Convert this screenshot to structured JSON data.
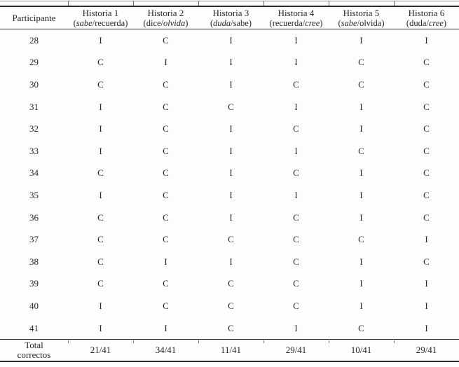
{
  "page": {
    "background_color": "#fdfdfd",
    "text_color": "#262626",
    "rule_color": "#2b2b2b"
  },
  "table": {
    "participant_header": "Participante",
    "subtitle_open": "(",
    "subtitle_close": ")",
    "subtitle_separator": "/",
    "columns": [
      {
        "title": "Historia 1",
        "word1": "sabe",
        "word2": "recuerda",
        "italic_word": "word1"
      },
      {
        "title": "Historia 2",
        "word1": "dice",
        "word2": "olvida",
        "italic_word": "word2"
      },
      {
        "title": "Historia 3",
        "word1": "duda",
        "word2": "sabe",
        "italic_word": "word1"
      },
      {
        "title": "Historia 4",
        "word1": "recuerda",
        "word2": "cree",
        "italic_word": "word2"
      },
      {
        "title": "Historia 5",
        "word1": "sabe",
        "word2": "olvida",
        "italic_word": "word1"
      },
      {
        "title": "Historia 6",
        "word1": "duda",
        "word2": "cree",
        "italic_word": "word2"
      }
    ],
    "rows": [
      {
        "participant": "28",
        "values": [
          "I",
          "C",
          "I",
          "I",
          "I",
          "I"
        ]
      },
      {
        "participant": "29",
        "values": [
          "C",
          "I",
          "I",
          "I",
          "C",
          "C"
        ]
      },
      {
        "participant": "30",
        "values": [
          "C",
          "C",
          "I",
          "C",
          "C",
          "C"
        ]
      },
      {
        "participant": "31",
        "values": [
          "I",
          "C",
          "C",
          "I",
          "I",
          "C"
        ]
      },
      {
        "participant": "32",
        "values": [
          "I",
          "C",
          "I",
          "C",
          "I",
          "C"
        ]
      },
      {
        "participant": "33",
        "values": [
          "I",
          "C",
          "I",
          "I",
          "C",
          "C"
        ]
      },
      {
        "participant": "34",
        "values": [
          "C",
          "C",
          "I",
          "C",
          "I",
          "C"
        ]
      },
      {
        "participant": "35",
        "values": [
          "I",
          "C",
          "I",
          "I",
          "I",
          "C"
        ]
      },
      {
        "participant": "36",
        "values": [
          "C",
          "C",
          "I",
          "C",
          "I",
          "C"
        ]
      },
      {
        "participant": "37",
        "values": [
          "C",
          "C",
          "C",
          "C",
          "C",
          "I"
        ]
      },
      {
        "participant": "38",
        "values": [
          "C",
          "I",
          "I",
          "C",
          "I",
          "C"
        ]
      },
      {
        "participant": "39",
        "values": [
          "C",
          "C",
          "C",
          "C",
          "I",
          "I"
        ]
      },
      {
        "participant": "40",
        "values": [
          "I",
          "C",
          "C",
          "C",
          "I",
          "I"
        ]
      },
      {
        "participant": "41",
        "values": [
          "I",
          "I",
          "C",
          "I",
          "C",
          "I"
        ]
      }
    ],
    "totals": {
      "label_line1": "Total",
      "label_line2": "correctos",
      "values": [
        "21/41",
        "34/41",
        "11/41",
        "29/41",
        "10/41",
        "29/41"
      ]
    }
  }
}
